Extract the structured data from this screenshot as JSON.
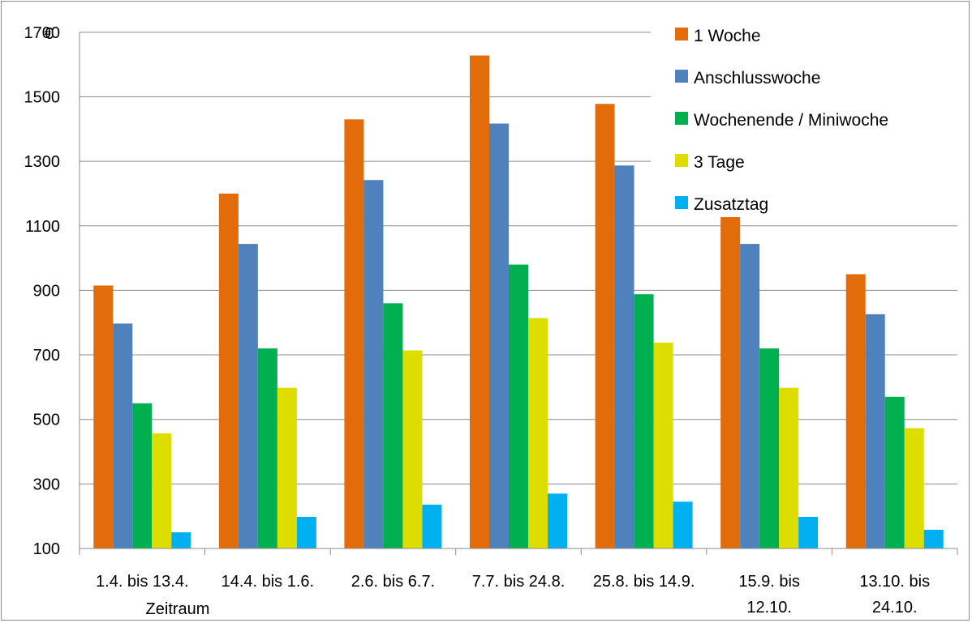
{
  "chart_data": {
    "type": "bar",
    "title": "",
    "ylabel": "€",
    "xlabel": "Zeitraum",
    "ylim": [
      100,
      1800
    ],
    "yticks": [
      100,
      300,
      500,
      700,
      900,
      1100,
      1300,
      1500,
      1700
    ],
    "grid": true,
    "legend_position": "top-right",
    "categories": [
      [
        "1.4. bis 13.4."
      ],
      [
        "14.4. bis 1.6."
      ],
      [
        "2.6. bis 6.7."
      ],
      [
        "7.7. bis 24.8."
      ],
      [
        "25.8. bis 14.9."
      ],
      [
        "15.9. bis",
        "12.10."
      ],
      [
        "13.10. bis",
        "24.10."
      ]
    ],
    "series": [
      {
        "name": "1 Woche",
        "color": "#E36C0A",
        "values": [
          915,
          1200,
          1430,
          1628,
          1478,
          1176,
          950
        ]
      },
      {
        "name": "Anschlusswoche",
        "color": "#4F81BD",
        "values": [
          797,
          1044,
          1242,
          1417,
          1287,
          1044,
          826
        ]
      },
      {
        "name": "Wochenende / Miniwoche",
        "color": "#00B050",
        "values": [
          550,
          720,
          860,
          980,
          888,
          720,
          570
        ]
      },
      {
        "name": "3 Tage",
        "color": "#DDDD00",
        "values": [
          457,
          598,
          714,
          814,
          738,
          598,
          473
        ]
      },
      {
        "name": "Zusatztag",
        "color": "#00B0F0",
        "values": [
          150,
          198,
          236,
          270,
          245,
          198,
          158
        ]
      }
    ]
  }
}
